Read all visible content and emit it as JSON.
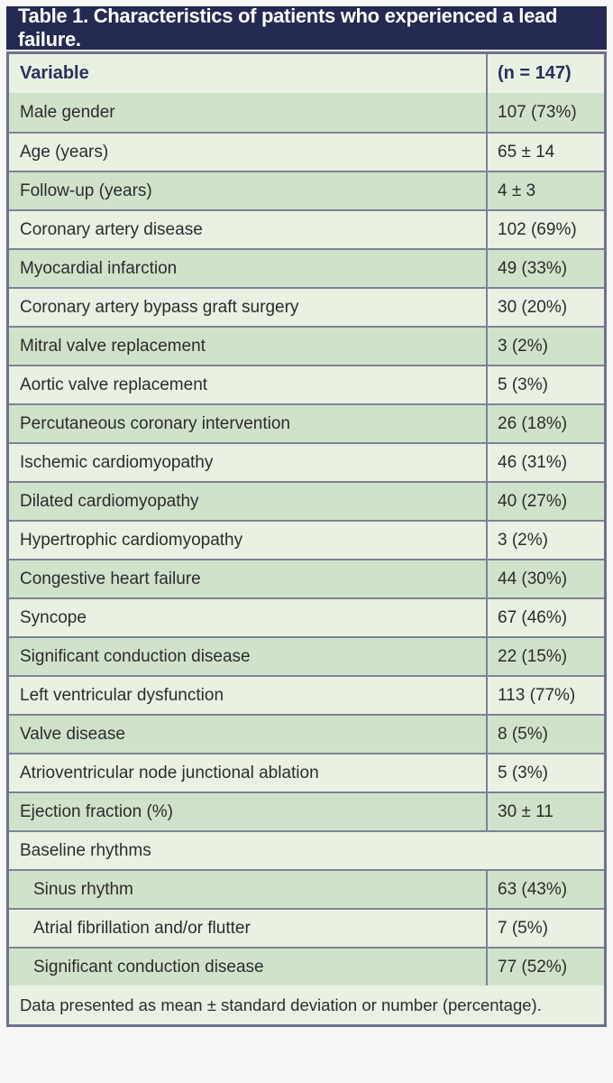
{
  "colors": {
    "title_bar_bg": "#252a52",
    "title_text": "#ffffff",
    "row_dark": "#d0e2ca",
    "row_light": "#e9f1e2",
    "border_outer": "#6d7290",
    "border_inner": "#7e8298",
    "header_text": "#2b2f5e",
    "body_text": "#2c2c2c"
  },
  "table": {
    "title": "Table 1. Characteristics of patients who experienced a lead failure.",
    "header": {
      "variable": "Variable",
      "count": "(n = 147)"
    },
    "rows": [
      {
        "label": "Male gender",
        "value": "107 (73%)"
      },
      {
        "label": "Age (years)",
        "value": "65 ± 14"
      },
      {
        "label": "Follow-up (years)",
        "value": "4 ± 3"
      },
      {
        "label": "Coronary artery disease",
        "value": "102 (69%)"
      },
      {
        "label": "Myocardial infarction",
        "value": "49 (33%)"
      },
      {
        "label": "Coronary artery bypass graft surgery",
        "value": "30 (20%)"
      },
      {
        "label": "Mitral valve replacement",
        "value": "3 (2%)"
      },
      {
        "label": "Aortic valve replacement",
        "value": "5 (3%)"
      },
      {
        "label": "Percutaneous coronary intervention",
        "value": "26 (18%)"
      },
      {
        "label": "Ischemic cardiomyopathy",
        "value": "46 (31%)"
      },
      {
        "label": "Dilated cardiomyopathy",
        "value": "40 (27%)"
      },
      {
        "label": "Hypertrophic cardiomyopathy",
        "value": "3 (2%)"
      },
      {
        "label": "Congestive heart failure",
        "value": "44 (30%)"
      },
      {
        "label": "Syncope",
        "value": "67 (46%)"
      },
      {
        "label": "Significant conduction disease",
        "value": "22 (15%)"
      },
      {
        "label": "Left ventricular dysfunction",
        "value": "113 (77%)"
      },
      {
        "label": "Valve disease",
        "value": "8 (5%)"
      },
      {
        "label": "Atrioventricular node junctional ablation",
        "value": "5 (3%)"
      },
      {
        "label": "Ejection fraction (%)",
        "value": "30 ± 11"
      },
      {
        "label": "Baseline rhythms",
        "value": "",
        "span": true
      },
      {
        "label": "Sinus rhythm",
        "value": "63 (43%)",
        "indent": true
      },
      {
        "label": "Atrial fibrillation and/or flutter",
        "value": "7 (5%)",
        "indent": true
      },
      {
        "label": "Significant conduction disease",
        "value": "77 (52%)",
        "indent": true
      }
    ],
    "footnote": "Data presented as mean ± standard deviation or number (percentage)."
  }
}
